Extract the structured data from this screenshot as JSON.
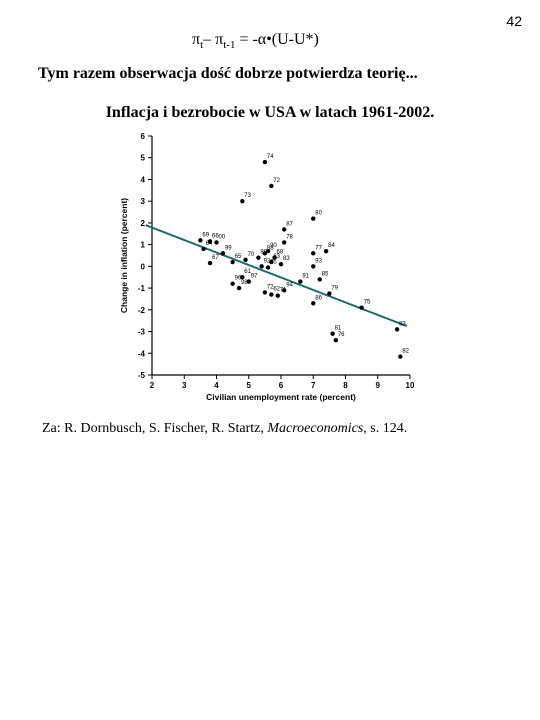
{
  "page_number": "42",
  "formula": [
    "π",
    "t",
    "– π",
    "t-1",
    " = -α•(U-U*)"
  ],
  "subtitle": "Tym razem obserwacja dość dobrze potwierdza teorię...",
  "chart_data": {
    "type": "scatter",
    "title": "Inflacja i bezrobocie w USA w latach 1961-2002.",
    "x_label": "Civilian unemployment rate (percent)",
    "y_label": "Change in inflation (percent)",
    "xlim": [
      2,
      10
    ],
    "xticks": [
      2,
      3,
      4,
      5,
      6,
      7,
      8,
      9,
      10
    ],
    "ylim": [
      -5,
      6
    ],
    "yticks": [
      -5,
      -4,
      -3,
      -2,
      -1,
      0,
      1,
      2,
      3,
      4,
      5,
      6
    ],
    "color": "#000000",
    "labels": [
      "74",
      "72",
      "73",
      "80",
      "87",
      "84",
      "78",
      "77",
      "69",
      "66",
      "64",
      "00",
      "99",
      "67",
      "65",
      "70",
      "88",
      "90",
      "89",
      "63",
      "68",
      "83",
      "95",
      "92",
      "61",
      "97",
      "96",
      "98",
      "72",
      "71",
      "62",
      "93",
      "94",
      "91",
      "85",
      "86",
      "79",
      "75",
      "81",
      "76",
      "83",
      "82"
    ],
    "x": [
      5.5,
      5.7,
      4.8,
      7.0,
      6.1,
      7.4,
      6.1,
      7.0,
      3.5,
      3.8,
      3.6,
      4.0,
      4.2,
      3.8,
      4.5,
      4.9,
      5.5,
      5.6,
      5.3,
      5.7,
      5.8,
      6.0,
      5.6,
      5.4,
      4.8,
      5.0,
      4.5,
      4.7,
      5.5,
      5.9,
      5.7,
      7.0,
      6.1,
      6.6,
      7.2,
      7.0,
      7.5,
      8.5,
      7.6,
      7.7,
      9.6,
      9.7
    ],
    "y": [
      4.8,
      3.7,
      3.0,
      2.2,
      1.7,
      0.7,
      1.1,
      0.6,
      1.2,
      1.15,
      0.8,
      1.1,
      0.6,
      0.15,
      0.2,
      0.3,
      0.6,
      0.7,
      0.4,
      0.2,
      0.4,
      0.1,
      -0.05,
      0.0,
      -0.5,
      -0.7,
      -0.8,
      -1.0,
      -1.2,
      -1.35,
      -1.3,
      0.0,
      -1.1,
      -0.7,
      -0.6,
      -1.7,
      -1.25,
      -1.9,
      -3.1,
      -3.4,
      -2.9,
      -4.15
    ],
    "fit_line": {
      "x": [
        1.8,
        9.9
      ],
      "y": [
        1.9,
        -2.75
      ],
      "color": "#1f6b75"
    }
  },
  "source": [
    "Za: R. Dornbusch, S. Fischer, R. Startz, ",
    "Macroeconomics",
    ", s. 124."
  ]
}
